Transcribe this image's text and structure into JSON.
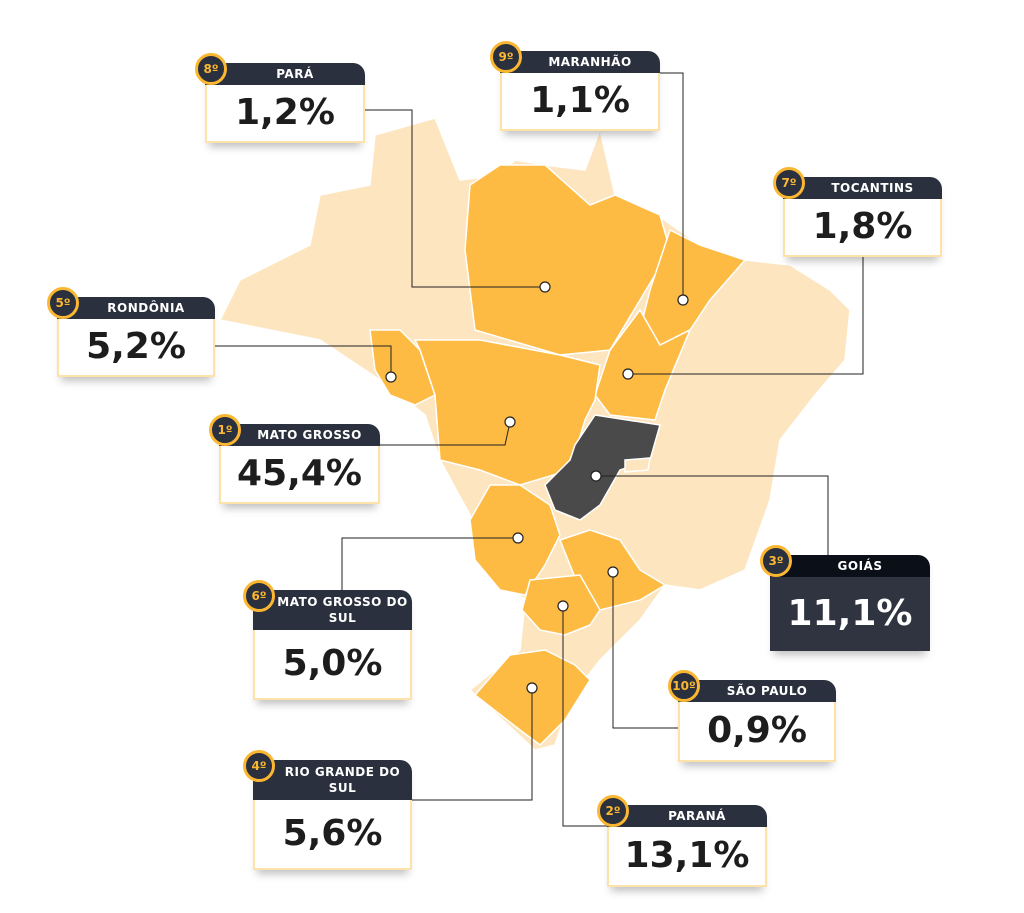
{
  "colors": {
    "highlight": "#fdbb44",
    "base": "#fde5bf",
    "top": "#4a4a4a",
    "card": "#2a303d"
  },
  "states": [
    {
      "rank": "8º",
      "name": "PARÁ",
      "value": "1,2%"
    },
    {
      "rank": "9º",
      "name": "MARANHÃO",
      "value": "1,1%"
    },
    {
      "rank": "7º",
      "name": "TOCANTINS",
      "value": "1,8%"
    },
    {
      "rank": "5º",
      "name": "RONDÔNIA",
      "value": "5,2%"
    },
    {
      "rank": "1º",
      "name": "MATO GROSSO",
      "value": "45,4%"
    },
    {
      "rank": "3º",
      "name": "GOIÁS",
      "value": "11,1%"
    },
    {
      "rank": "6º",
      "name": "MATO GROSSO DO SUL",
      "value": "5,0%"
    },
    {
      "rank": "4º",
      "name": "RIO GRANDE DO SUL",
      "value": "5,6%"
    },
    {
      "rank": "10º",
      "name": "SÃO PAULO",
      "value": "0,9%"
    },
    {
      "rank": "2º",
      "name": "PARANÁ",
      "value": "13,1%"
    }
  ]
}
